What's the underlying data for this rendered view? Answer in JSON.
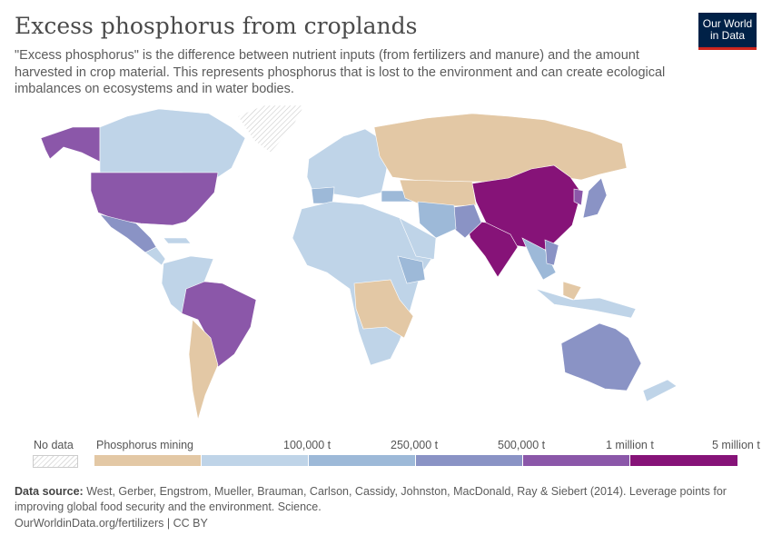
{
  "header": {
    "title": "Excess phosphorus from croplands",
    "subtitle": "\"Excess phosphorus\" is the difference between nutrient inputs (from fertilizers and manure) and the amount harvested in crop material. This represents phosphorus that is lost to the environment and can create ecological imbalances on ecosystems and in water bodies.",
    "logo_line1": "Our World",
    "logo_line2": "in Data"
  },
  "legend": {
    "no_data_label": "No data",
    "bins": [
      {
        "label": "Phosphorus mining",
        "color": "#e3c8a5"
      },
      {
        "label": "100,000 t",
        "color": "#bfd4e8"
      },
      {
        "label": "250,000 t",
        "color": "#9db9d8"
      },
      {
        "label": "500,000 t",
        "color": "#8a93c5"
      },
      {
        "label": "1 million t",
        "color": "#8b57a9"
      },
      {
        "label": "5 million t",
        "color": "#861378"
      }
    ]
  },
  "footer": {
    "source_label": "Data source:",
    "source_text": "West, Gerber, Engstrom, Mueller, Brauman, Carlson, Cassidy, Johnston, MacDonald, Ray & Siebert (2014). Leverage points for improving global food security and the environment. Science.",
    "url": "OurWorldinData.org/fertilizers | CC BY"
  }
}
